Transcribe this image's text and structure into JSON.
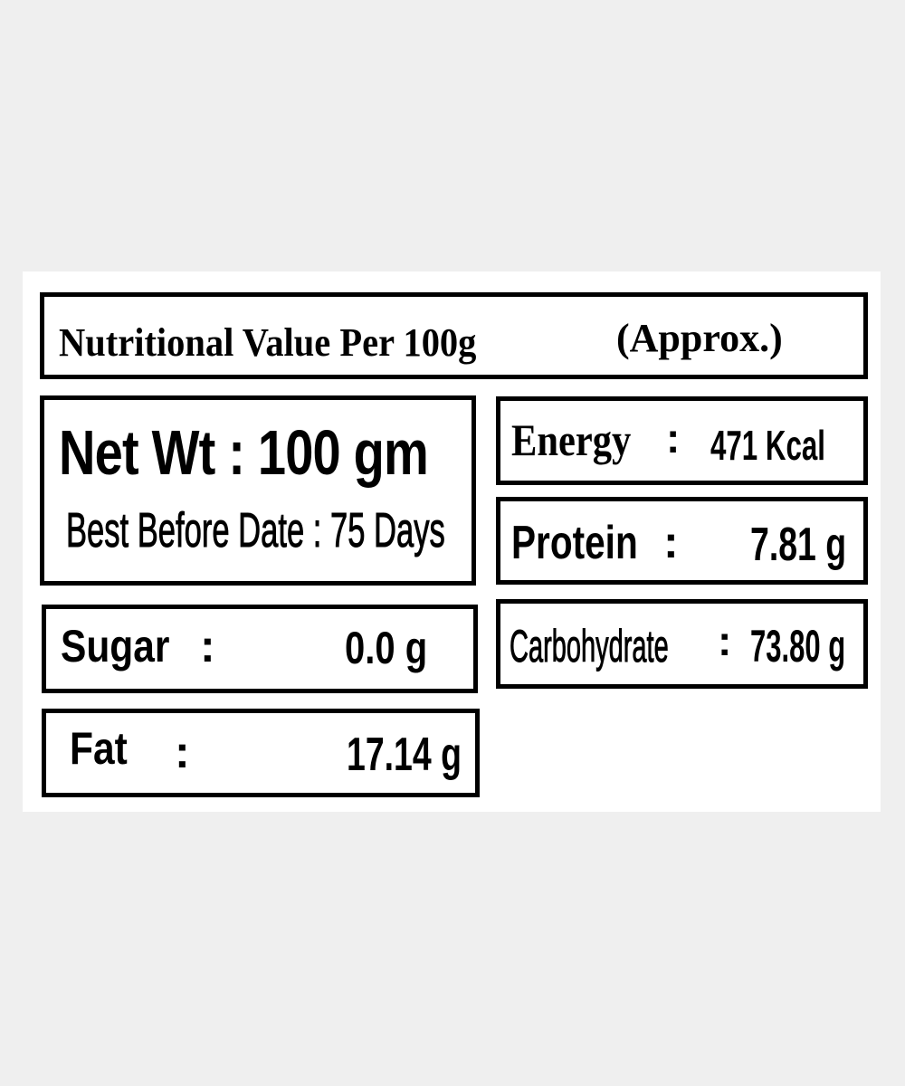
{
  "label": {
    "title": "Nutritional Value Per 100g",
    "title_note": "(Approx.)",
    "net_weight": "Net Wt : 100 gm",
    "best_before": "Best Before Date : 75 Days",
    "nutrients": {
      "sugar": {
        "label": "Sugar",
        "colon": ":",
        "value": "0.0 g"
      },
      "fat": {
        "label": "Fat",
        "colon": ":",
        "value": "17.14 g"
      },
      "energy": {
        "label": "Energy",
        "colon": ":",
        "value": "471 Kcal"
      },
      "protein": {
        "label": "Protein",
        "colon": ":",
        "value": "7.81 g"
      },
      "carbohydrate": {
        "label": "Carbohydrate",
        "colon": ":",
        "value": "73.80 g"
      }
    }
  }
}
